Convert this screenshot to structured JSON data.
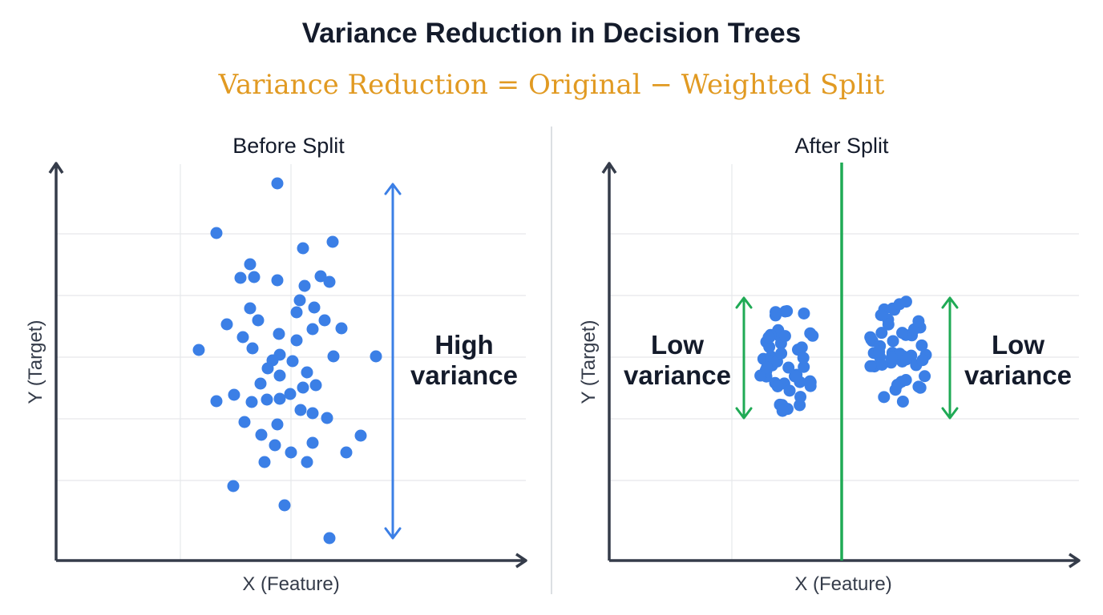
{
  "title": "Variance Reduction in Decision Trees",
  "formula": "Variance Reduction = Original − Weighted Split",
  "left_panel": {
    "title": "Before Split",
    "x_label": "X (Feature)",
    "y_label": "Y (Target)",
    "annotation_line1": "High",
    "annotation_line2": "variance"
  },
  "right_panel": {
    "title": "After Split",
    "x_label": "X (Feature)",
    "y_label": "Y (Target)",
    "left_annotation_line1": "Low",
    "left_annotation_line2": "variance",
    "right_annotation_line1": "Low",
    "right_annotation_line2": "variance"
  },
  "colors": {
    "points": "#3b7fe6",
    "high_variance_arrow": "#3b7fe6",
    "split_line": "#1faa55",
    "low_variance_arrow": "#1faa55",
    "formula": "#e19a22",
    "axis": "#353c4a"
  }
}
